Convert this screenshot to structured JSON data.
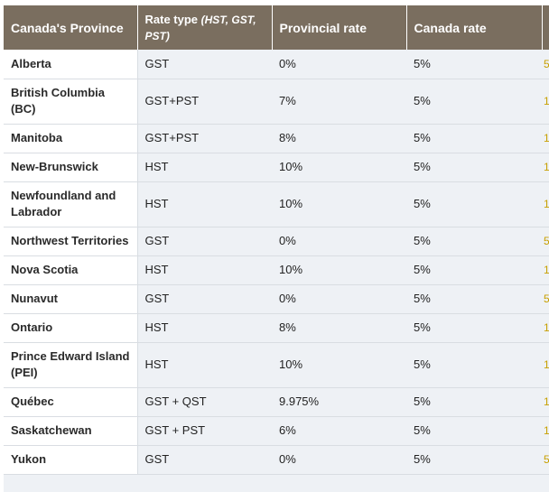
{
  "table": {
    "headers": {
      "province": "Canada's Province",
      "rate_type_main": "Rate type ",
      "rate_type_italic": "(HST, GST, PST)",
      "provincial_rate": "Provincial rate",
      "canada_rate": "Canada rate"
    },
    "rows": [
      {
        "province": "Alberta",
        "rate_type": "GST",
        "provincial_rate": "0%",
        "canada_rate": "5%",
        "cut_glyph": "5"
      },
      {
        "province": "British Columbia (BC)",
        "rate_type": "GST+PST",
        "provincial_rate": "7%",
        "canada_rate": "5%",
        "cut_glyph": "1"
      },
      {
        "province": "Manitoba",
        "rate_type": "GST+PST",
        "provincial_rate": "8%",
        "canada_rate": "5%",
        "cut_glyph": "1"
      },
      {
        "province": "New-Brunswick",
        "rate_type": "HST",
        "provincial_rate": "10%",
        "canada_rate": "5%",
        "cut_glyph": "1"
      },
      {
        "province": "Newfoundland and Labrador",
        "rate_type": "HST",
        "provincial_rate": "10%",
        "canada_rate": "5%",
        "cut_glyph": "1"
      },
      {
        "province": "Northwest Territories",
        "rate_type": "GST",
        "provincial_rate": "0%",
        "canada_rate": "5%",
        "cut_glyph": "5"
      },
      {
        "province": "Nova Scotia",
        "rate_type": "HST",
        "provincial_rate": "10%",
        "canada_rate": "5%",
        "cut_glyph": "1"
      },
      {
        "province": "Nunavut",
        "rate_type": "GST",
        "provincial_rate": "0%",
        "canada_rate": "5%",
        "cut_glyph": "5"
      },
      {
        "province": "Ontario",
        "rate_type": "HST",
        "provincial_rate": "8%",
        "canada_rate": "5%",
        "cut_glyph": "1"
      },
      {
        "province": "Prince Edward Island (PEI)",
        "rate_type": "HST",
        "provincial_rate": "10%",
        "canada_rate": "5%",
        "cut_glyph": "1"
      },
      {
        "province": "Québec",
        "rate_type": "GST + QST",
        "provincial_rate": "9.975%",
        "canada_rate": "5%",
        "cut_glyph": "1"
      },
      {
        "province": "Saskatchewan",
        "rate_type": "GST + PST",
        "provincial_rate": "6%",
        "canada_rate": "5%",
        "cut_glyph": "1"
      },
      {
        "province": "Yukon",
        "rate_type": "GST",
        "provincial_rate": "0%",
        "canada_rate": "5%",
        "cut_glyph": "5"
      }
    ]
  }
}
